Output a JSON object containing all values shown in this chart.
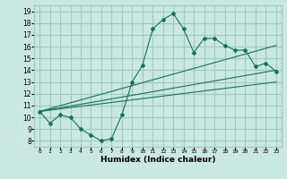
{
  "xlabel": "Humidex (Indice chaleur)",
  "ylabel": "",
  "background_color": "#c8e8e0",
  "grid_color": "#a0c8c0",
  "line_color": "#1a7060",
  "xlim": [
    -0.5,
    23.5
  ],
  "ylim": [
    7.5,
    19.5
  ],
  "xticks": [
    0,
    1,
    2,
    3,
    4,
    5,
    6,
    7,
    8,
    9,
    10,
    11,
    12,
    13,
    14,
    15,
    16,
    17,
    18,
    19,
    20,
    21,
    22,
    23
  ],
  "yticks": [
    8,
    9,
    10,
    11,
    12,
    13,
    14,
    15,
    16,
    17,
    18,
    19
  ],
  "series1_x": [
    0,
    1,
    2,
    3,
    4,
    5,
    6,
    7,
    8,
    9,
    10,
    11,
    12,
    13,
    14,
    15,
    16,
    17,
    18,
    19,
    20,
    21,
    22,
    23
  ],
  "series1_y": [
    10.5,
    9.5,
    10.2,
    10.0,
    9.0,
    8.5,
    8.0,
    8.2,
    10.2,
    13.0,
    14.4,
    17.5,
    18.3,
    18.8,
    17.5,
    15.5,
    16.7,
    16.7,
    16.1,
    15.7,
    15.7,
    14.3,
    14.6,
    13.9
  ],
  "series2_x": [
    0,
    23
  ],
  "series2_y": [
    10.5,
    14.0
  ],
  "series3_x": [
    0,
    23
  ],
  "series3_y": [
    10.5,
    13.0
  ],
  "series4_x": [
    0,
    23
  ],
  "series4_y": [
    10.5,
    16.1
  ]
}
